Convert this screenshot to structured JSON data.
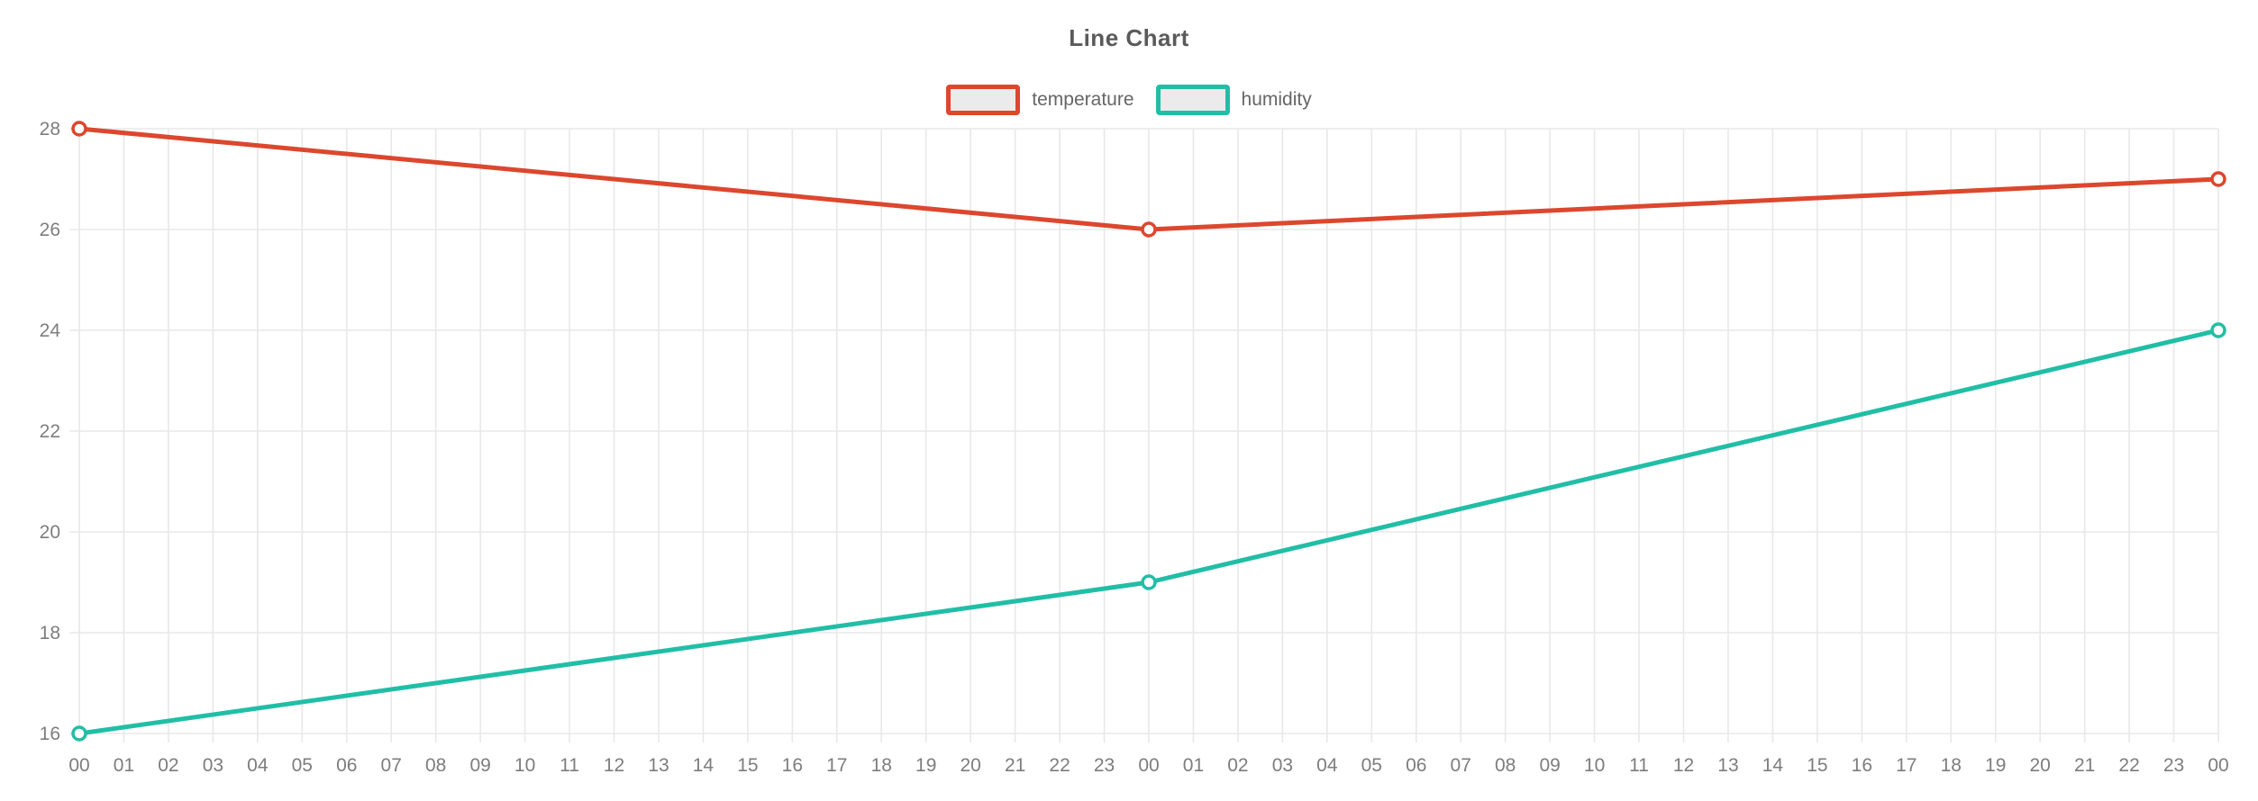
{
  "chart_data": {
    "type": "line",
    "title": "Line Chart",
    "legend_position": "top",
    "grid": true,
    "categories": [
      "00",
      "01",
      "02",
      "03",
      "04",
      "05",
      "06",
      "07",
      "08",
      "09",
      "10",
      "11",
      "12",
      "13",
      "14",
      "15",
      "16",
      "17",
      "18",
      "19",
      "20",
      "21",
      "22",
      "23",
      "00",
      "01",
      "02",
      "03",
      "04",
      "05",
      "06",
      "07",
      "08",
      "09",
      "10",
      "11",
      "12",
      "13",
      "14",
      "15",
      "16",
      "17",
      "18",
      "19",
      "20",
      "21",
      "22",
      "23",
      "00"
    ],
    "ylim": [
      16,
      28
    ],
    "yticks": [
      16,
      18,
      20,
      22,
      24,
      26,
      28
    ],
    "series": [
      {
        "name": "temperature",
        "color": "#dc472e",
        "points": [
          {
            "x_index": 0,
            "x_label": "00",
            "value": 28
          },
          {
            "x_index": 24,
            "x_label": "00",
            "value": 26
          },
          {
            "x_index": 48,
            "x_label": "00",
            "value": 27
          }
        ]
      },
      {
        "name": "humidity",
        "color": "#21bea6",
        "points": [
          {
            "x_index": 0,
            "x_label": "00",
            "value": 16
          },
          {
            "x_index": 24,
            "x_label": "00",
            "value": 19
          },
          {
            "x_index": 48,
            "x_label": "00",
            "value": 24
          }
        ]
      }
    ],
    "colors": {
      "grid": "#e8e8e8",
      "axis_text": "#7d7d7d",
      "title_text": "#5a5a5a",
      "legend_text": "#666666",
      "legend_swatch_fill": "#ebebeb",
      "marker_fill": "#ffffff"
    }
  }
}
